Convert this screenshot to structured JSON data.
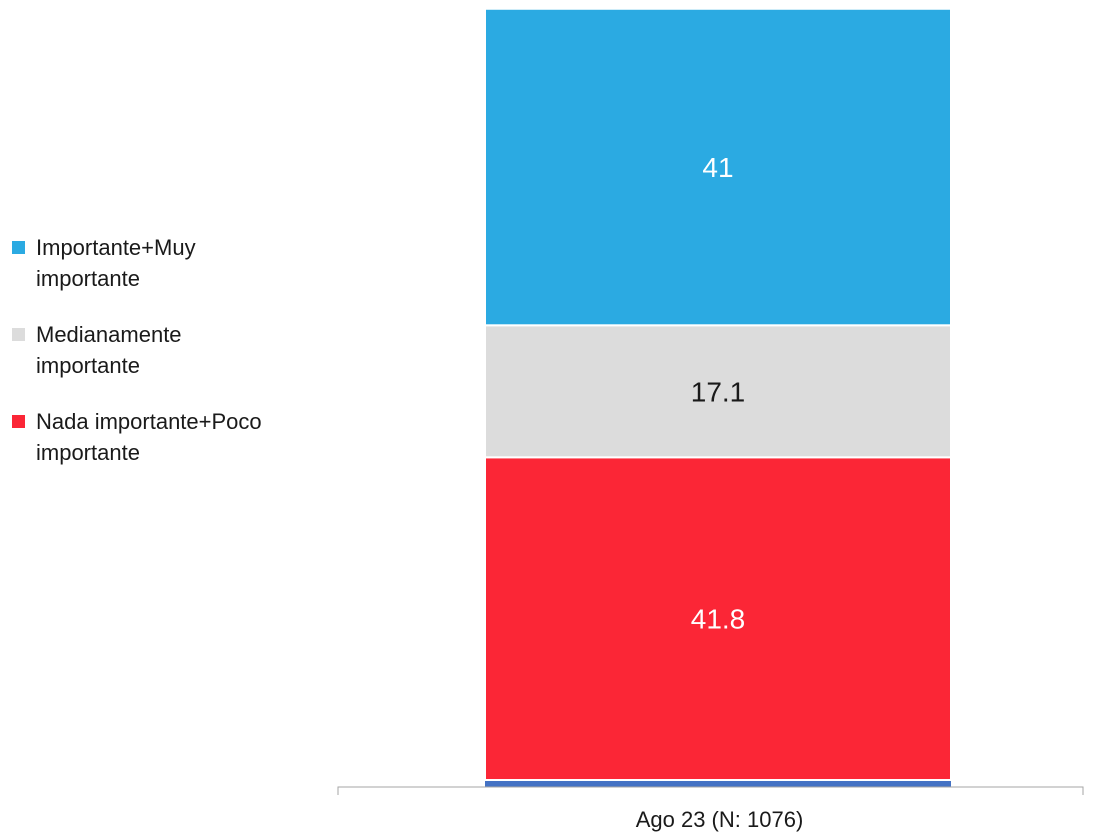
{
  "chart_data": {
    "type": "bar",
    "stacked": true,
    "categories": [
      "Ago 23 (N: 1076)"
    ],
    "series": [
      {
        "name": "Nada importante+Poco importante",
        "values": [
          41.8
        ],
        "color": "#fb2636",
        "label_color": "#ffffff"
      },
      {
        "name": "Medianamente importante",
        "values": [
          17.1
        ],
        "color": "#dcdcdc",
        "label_color": "#1a1a1a"
      },
      {
        "name": " Importante+Muy importante",
        "values": [
          41
        ],
        "color": "#2baae2",
        "label_color": "#ffffff"
      }
    ],
    "legend": {
      "position": "left",
      "items": [
        {
          "label": " Importante+Muy\nimportante",
          "color": "#2baae2"
        },
        {
          "label": "Medianamente\nimportante",
          "color": "#dcdcdc"
        },
        {
          "label": "Nada importante+Poco\nimportante",
          "color": "#fb2636"
        }
      ]
    },
    "ylim": [
      0,
      100
    ],
    "grid": false
  }
}
